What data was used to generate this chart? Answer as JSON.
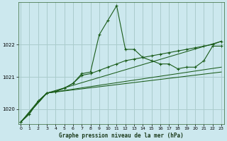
{
  "title": "Graphe pression niveau de la mer (hPa)",
  "bg_color": "#cce8ee",
  "grid_color": "#aacccc",
  "line_color": "#1a5c1a",
  "x_ticks": [
    0,
    1,
    2,
    3,
    4,
    5,
    6,
    7,
    8,
    9,
    10,
    11,
    12,
    13,
    14,
    15,
    16,
    17,
    18,
    19,
    20,
    21,
    22,
    23
  ],
  "y_ticks": [
    1020,
    1021,
    1022
  ],
  "ylim": [
    1019.55,
    1023.3
  ],
  "xlim": [
    -0.3,
    23.3
  ],
  "series": [
    {
      "x": [
        0,
        1,
        2,
        3,
        4,
        5,
        6,
        7,
        8,
        9,
        10,
        11,
        12,
        13,
        14,
        15,
        16,
        17,
        18,
        19,
        20,
        21,
        22,
        23
      ],
      "y": [
        1019.6,
        1019.85,
        1020.25,
        1020.5,
        1020.55,
        1020.65,
        1020.8,
        1021.1,
        1021.15,
        1022.3,
        1022.75,
        1023.2,
        1021.85,
        1021.85,
        1021.6,
        1021.5,
        1021.4,
        1021.4,
        1021.25,
        1021.3,
        1021.3,
        1021.5,
        1021.95,
        1021.95
      ],
      "marker": true
    },
    {
      "x": [
        0,
        2,
        3,
        4,
        5,
        6,
        7,
        8,
        9,
        10,
        11,
        12,
        13,
        14,
        15,
        16,
        17,
        18,
        19,
        20,
        21,
        22,
        23
      ],
      "y": [
        1019.6,
        1020.25,
        1020.5,
        1020.55,
        1020.65,
        1020.8,
        1021.05,
        1021.1,
        1021.2,
        1021.3,
        1021.4,
        1021.5,
        1021.55,
        1021.6,
        1021.65,
        1021.7,
        1021.75,
        1021.8,
        1021.85,
        1021.9,
        1021.95,
        1022.0,
        1022.1
      ],
      "marker": true
    },
    {
      "x": [
        0,
        3,
        23
      ],
      "y": [
        1019.6,
        1020.5,
        1022.1
      ],
      "marker": false
    },
    {
      "x": [
        0,
        3,
        23
      ],
      "y": [
        1019.6,
        1020.5,
        1021.3
      ],
      "marker": false
    },
    {
      "x": [
        0,
        3,
        23
      ],
      "y": [
        1019.6,
        1020.5,
        1021.15
      ],
      "marker": false
    }
  ]
}
